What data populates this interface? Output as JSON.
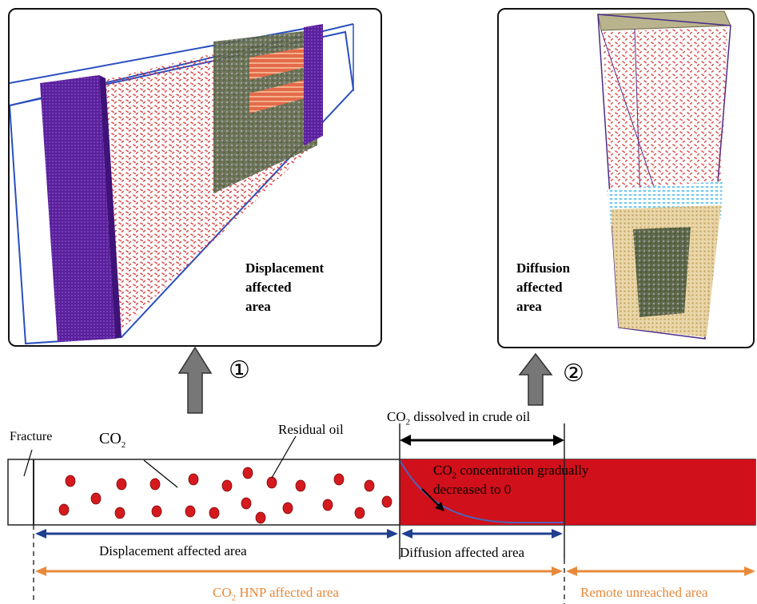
{
  "panels": {
    "left": {
      "caption": [
        "Displacement",
        "affected",
        "area"
      ]
    },
    "right": {
      "caption": [
        "Diffusion",
        "affected",
        "area"
      ]
    }
  },
  "arrows": {
    "step1": "①",
    "step2": "②"
  },
  "labels": {
    "fracture": "Fracture",
    "co2": "CO",
    "co2_sub": "2",
    "residual_oil": "Residual oil",
    "dissolved_pre": "CO",
    "dissolved_sub": "2",
    "dissolved_post": " dissolved in crude oil",
    "conc_line1_pre": "CO",
    "conc_line1_sub": "2",
    "conc_line1_post": " concentration gradually",
    "conc_line2": "decreased to 0",
    "displacement_area": "Displacement affected area",
    "diffusion_area": "Diffusion affected area",
    "hnp_pre": "CO",
    "hnp_sub": "2",
    "hnp_post": " HNP affected area",
    "remote": "Remote unreached area"
  },
  "colors": {
    "oil": "#d0101a",
    "droplet": "#d41a1e",
    "blue_arrow": "#1f3f8f",
    "orange_arrow": "#e8893a",
    "gray_arrow": "#777777",
    "purple_wall": "#5a1f9a",
    "cyan": "#7fd3f0",
    "sand": "#d8bf86"
  }
}
